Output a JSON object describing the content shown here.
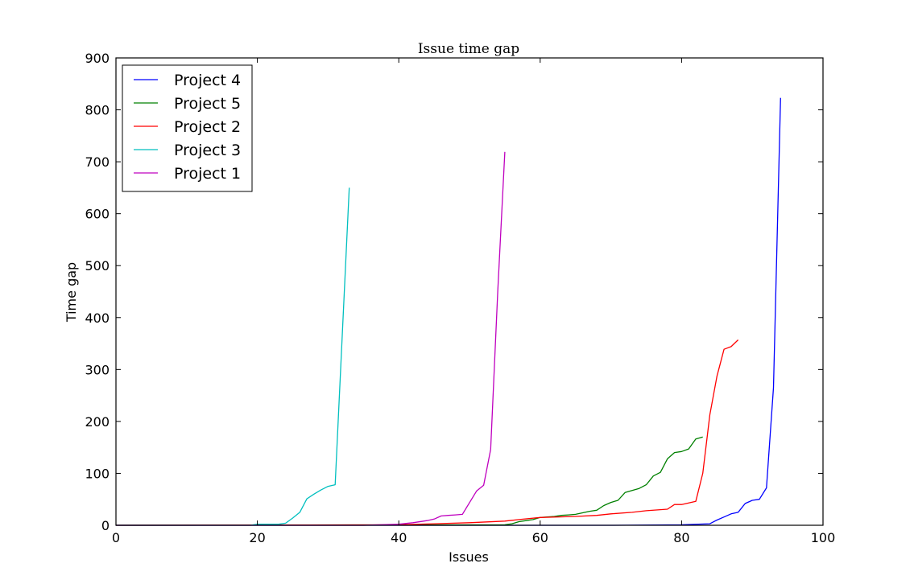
{
  "chart_data": {
    "type": "line",
    "title": "Issue time gap",
    "xlabel": "Issues",
    "ylabel": "Time gap",
    "xlim": [
      0,
      100
    ],
    "ylim": [
      0,
      900
    ],
    "xticks": [
      "0",
      "20",
      "40",
      "60",
      "80",
      "100"
    ],
    "yticks": [
      "0",
      "100",
      "200",
      "300",
      "400",
      "500",
      "600",
      "700",
      "800",
      "900"
    ],
    "grid": false,
    "legend_position": "top-left",
    "series": [
      {
        "name": "Project 4",
        "color": "#0000ff",
        "x": [
          0,
          70,
          80,
          84,
          85,
          86,
          87,
          88,
          89,
          90,
          91,
          92,
          93,
          94
        ],
        "y": [
          0,
          0,
          1,
          3,
          10,
          16,
          22,
          25,
          42,
          48,
          50,
          72,
          265,
          823
        ]
      },
      {
        "name": "Project 5",
        "color": "#008000",
        "x": [
          0,
          55,
          56,
          57,
          58,
          59,
          60,
          61,
          62,
          63,
          64,
          65,
          66,
          67,
          68,
          69,
          70,
          71,
          72,
          73,
          74,
          75,
          76,
          77,
          78,
          79,
          80,
          81,
          82,
          83
        ],
        "y": [
          0,
          1,
          3,
          7,
          9,
          11,
          15,
          16,
          17,
          19,
          20,
          21,
          24,
          27,
          29,
          38,
          44,
          48,
          63,
          67,
          71,
          78,
          95,
          102,
          128,
          140,
          142,
          147,
          166,
          170
        ]
      },
      {
        "name": "Project 2",
        "color": "#ff0000",
        "x": [
          0,
          40,
          45,
          50,
          55,
          57,
          60,
          65,
          68,
          70,
          73,
          75,
          77,
          78,
          79,
          80,
          81,
          82,
          83,
          84,
          85,
          86,
          87,
          88
        ],
        "y": [
          0,
          1,
          3,
          5,
          8,
          11,
          15,
          17,
          19,
          22,
          25,
          28,
          30,
          31,
          40,
          40,
          43,
          46,
          100,
          213,
          287,
          339,
          344,
          357
        ]
      },
      {
        "name": "Project 3",
        "color": "#00bfbf",
        "x": [
          0,
          19,
          20,
          23,
          24,
          25,
          26,
          27,
          28,
          29,
          30,
          31,
          33
        ],
        "y": [
          0,
          0,
          2,
          2,
          4,
          14,
          25,
          51,
          60,
          68,
          75,
          78,
          650
        ]
      },
      {
        "name": "Project 1",
        "color": "#bf00bf",
        "x": [
          0,
          35,
          40,
          42,
          44,
          45,
          46,
          47,
          48,
          49,
          51,
          52,
          53,
          54,
          55
        ],
        "y": [
          0,
          0,
          2,
          5,
          9,
          12,
          18,
          19,
          20,
          21,
          66,
          77,
          146,
          450,
          719
        ]
      }
    ]
  }
}
